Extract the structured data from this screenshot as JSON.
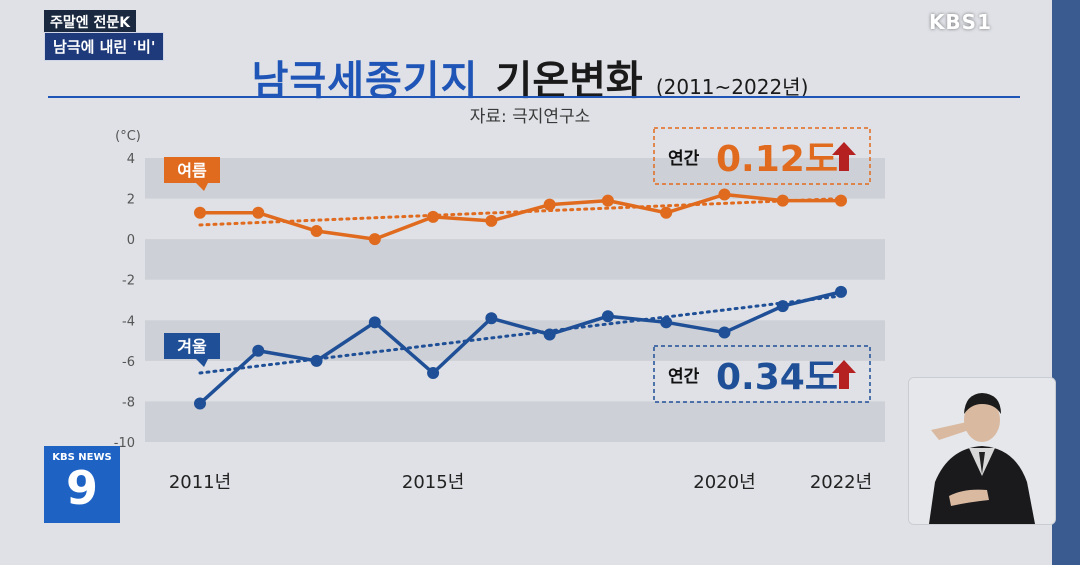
{
  "header": {
    "program_tag": "주말엔 전문K",
    "segment_tag": "남극에 내린 '비'",
    "broadcaster": "KBS1"
  },
  "headline": {
    "title_main": "남극세종기지",
    "title_sub": "기온변화",
    "title_years": "(2011~2022년)",
    "source": "자료: 극지연구소"
  },
  "news_logo": {
    "label": "KBS NEWS",
    "number": "9"
  },
  "colors": {
    "summer": "#e06b1f",
    "winter": "#1f4f96",
    "arrow": "#b52020",
    "band": "#cdd0d6",
    "title": "#1f55b6"
  },
  "chart_data": {
    "type": "line",
    "unit": "(°C)",
    "ylim": [
      -10,
      4
    ],
    "y_ticks": [
      "4",
      "2",
      "0",
      "-2",
      "-4",
      "-6",
      "-8",
      "-10"
    ],
    "x": [
      2011,
      2012,
      2013,
      2014,
      2015,
      2016,
      2017,
      2018,
      2019,
      2020,
      2021,
      2022
    ],
    "x_tick_labels": [
      {
        "year": 2011,
        "label": "2011년"
      },
      {
        "year": 2015,
        "label": "2015년"
      },
      {
        "year": 2020,
        "label": "2020년"
      },
      {
        "year": 2022,
        "label": "2022년"
      }
    ],
    "series": [
      {
        "name": "여름",
        "values": [
          1.3,
          1.3,
          0.4,
          0.0,
          1.1,
          0.9,
          1.7,
          1.9,
          1.3,
          2.2,
          1.9,
          1.9
        ],
        "trend": [
          0.7,
          2.0
        ],
        "trend_label_prefix": "연간",
        "trend_label_value": "0.12도"
      },
      {
        "name": "겨울",
        "values": [
          -8.1,
          -5.5,
          -6.0,
          -4.1,
          -6.6,
          -3.9,
          -4.7,
          -3.8,
          -4.1,
          -4.6,
          -3.3,
          -2.6
        ],
        "trend": [
          -6.6,
          -2.8
        ],
        "trend_label_prefix": "연간",
        "trend_label_value": "0.34도"
      }
    ]
  }
}
